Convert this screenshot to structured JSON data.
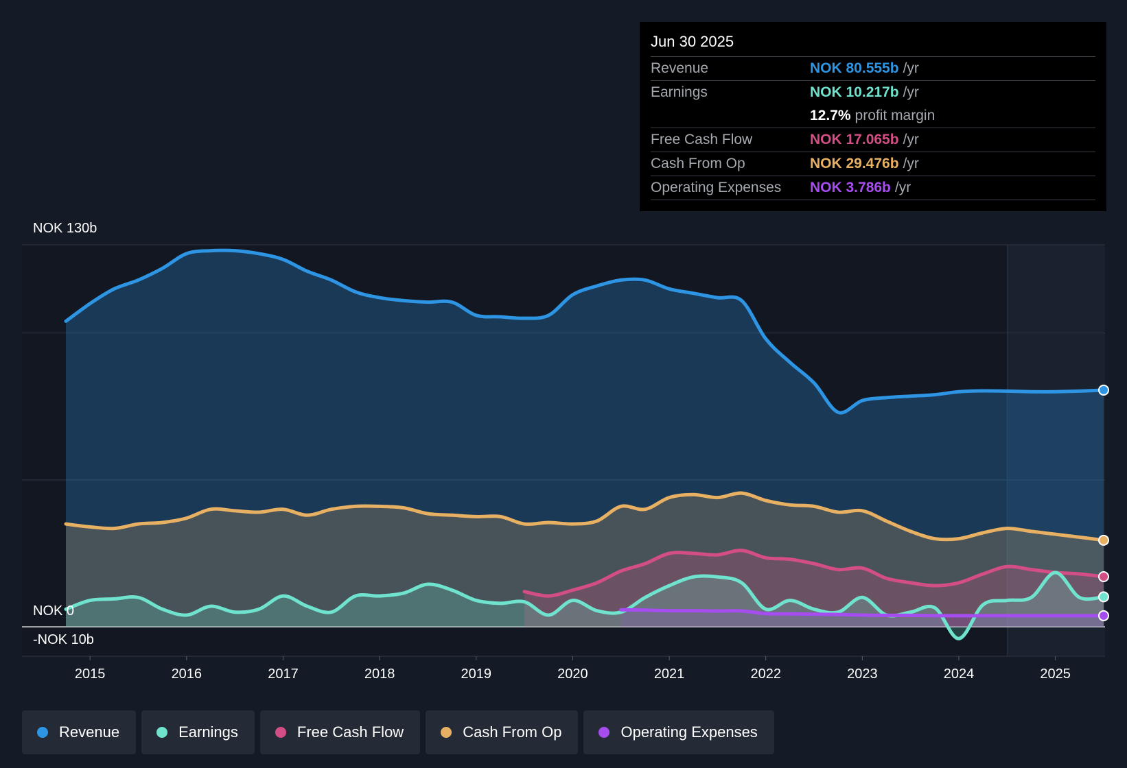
{
  "tooltip": {
    "date": "Jun 30 2025",
    "rows": [
      {
        "label": "Revenue",
        "value": "NOK 80.555b",
        "unit": "/yr",
        "color": "#2d95e3"
      },
      {
        "label": "Earnings",
        "value": "NOK 10.217b",
        "unit": "/yr",
        "color": "#6fe3ce"
      },
      {
        "label": "",
        "value": "12.7%",
        "unit": "profit margin",
        "color": "#ffffff"
      },
      {
        "label": "Free Cash Flow",
        "value": "NOK 17.065b",
        "unit": "/yr",
        "color": "#d24e84"
      },
      {
        "label": "Cash From Op",
        "value": "NOK 29.476b",
        "unit": "/yr",
        "color": "#e8b062"
      },
      {
        "label": "Operating Expenses",
        "value": "NOK 3.786b",
        "unit": "/yr",
        "color": "#a64df0"
      }
    ]
  },
  "legend": [
    {
      "label": "Revenue",
      "color": "#2d95e3"
    },
    {
      "label": "Earnings",
      "color": "#6fe3ce"
    },
    {
      "label": "Free Cash Flow",
      "color": "#d24e84"
    },
    {
      "label": "Cash From Op",
      "color": "#e8b062"
    },
    {
      "label": "Operating Expenses",
      "color": "#a64df0"
    }
  ],
  "chart_data": {
    "type": "area",
    "title": "",
    "xlabel": "",
    "ylabel": "",
    "ylim": [
      -10,
      130
    ],
    "xlim": [
      2014.75,
      2025.5
    ],
    "y_top_label": "NOK 130b",
    "y_zero_label": "NOK 0",
    "y_bottom_label": "-NOK 10b",
    "x_ticks": [
      "2015",
      "2016",
      "2017",
      "2018",
      "2019",
      "2020",
      "2021",
      "2022",
      "2023",
      "2024",
      "2025"
    ],
    "x_tick_values": [
      2015,
      2016,
      2017,
      2018,
      2019,
      2020,
      2021,
      2022,
      2023,
      2024,
      2025
    ],
    "forecast_start": 2024.5,
    "series": [
      {
        "name": "Revenue",
        "color": "#2d95e3",
        "points": [
          [
            2014.75,
            104
          ],
          [
            2015.0,
            110
          ],
          [
            2015.25,
            115
          ],
          [
            2015.5,
            118
          ],
          [
            2015.75,
            122
          ],
          [
            2016.0,
            127
          ],
          [
            2016.25,
            128
          ],
          [
            2016.5,
            128
          ],
          [
            2016.75,
            127
          ],
          [
            2017.0,
            125
          ],
          [
            2017.25,
            121
          ],
          [
            2017.5,
            118
          ],
          [
            2017.75,
            114
          ],
          [
            2018.0,
            112
          ],
          [
            2018.25,
            111
          ],
          [
            2018.5,
            110.5
          ],
          [
            2018.75,
            110.5
          ],
          [
            2019.0,
            106
          ],
          [
            2019.25,
            105.5
          ],
          [
            2019.5,
            105
          ],
          [
            2019.75,
            106
          ],
          [
            2020.0,
            113
          ],
          [
            2020.25,
            116
          ],
          [
            2020.5,
            118
          ],
          [
            2020.75,
            118
          ],
          [
            2021.0,
            115
          ],
          [
            2021.25,
            113.5
          ],
          [
            2021.5,
            112
          ],
          [
            2021.75,
            111
          ],
          [
            2022.0,
            98
          ],
          [
            2022.25,
            90
          ],
          [
            2022.5,
            83
          ],
          [
            2022.75,
            73
          ],
          [
            2023.0,
            77
          ],
          [
            2023.25,
            78
          ],
          [
            2023.5,
            78.5
          ],
          [
            2023.75,
            79
          ],
          [
            2024.0,
            80
          ],
          [
            2024.25,
            80.3
          ],
          [
            2024.5,
            80.2
          ],
          [
            2024.75,
            80
          ],
          [
            2025.0,
            80
          ],
          [
            2025.25,
            80.2
          ],
          [
            2025.5,
            80.555
          ]
        ]
      },
      {
        "name": "Cash From Op",
        "color": "#e8b062",
        "points": [
          [
            2014.75,
            35
          ],
          [
            2015.0,
            34
          ],
          [
            2015.25,
            33.5
          ],
          [
            2015.5,
            35
          ],
          [
            2015.75,
            35.5
          ],
          [
            2016.0,
            37
          ],
          [
            2016.25,
            40
          ],
          [
            2016.5,
            39.5
          ],
          [
            2016.75,
            39
          ],
          [
            2017.0,
            40
          ],
          [
            2017.25,
            38
          ],
          [
            2017.5,
            40
          ],
          [
            2017.75,
            41
          ],
          [
            2018.0,
            41
          ],
          [
            2018.25,
            40.5
          ],
          [
            2018.5,
            38.5
          ],
          [
            2018.75,
            38
          ],
          [
            2019.0,
            37.5
          ],
          [
            2019.25,
            37.5
          ],
          [
            2019.5,
            35
          ],
          [
            2019.75,
            35.5
          ],
          [
            2020.0,
            35
          ],
          [
            2020.25,
            36
          ],
          [
            2020.5,
            41
          ],
          [
            2020.75,
            40
          ],
          [
            2021.0,
            44
          ],
          [
            2021.25,
            45
          ],
          [
            2021.5,
            44
          ],
          [
            2021.75,
            45.5
          ],
          [
            2022.0,
            43
          ],
          [
            2022.25,
            41.5
          ],
          [
            2022.5,
            41
          ],
          [
            2022.75,
            39
          ],
          [
            2023.0,
            39.5
          ],
          [
            2023.25,
            36
          ],
          [
            2023.5,
            32.5
          ],
          [
            2023.75,
            30
          ],
          [
            2024.0,
            30
          ],
          [
            2024.25,
            32
          ],
          [
            2024.5,
            33.5
          ],
          [
            2024.75,
            32.5
          ],
          [
            2025.0,
            31.5
          ],
          [
            2025.25,
            30.5
          ],
          [
            2025.5,
            29.476
          ]
        ]
      },
      {
        "name": "Free Cash Flow",
        "color": "#d24e84",
        "points": [
          [
            2019.5,
            12
          ],
          [
            2019.75,
            10.5
          ],
          [
            2020.0,
            12.5
          ],
          [
            2020.25,
            15
          ],
          [
            2020.5,
            19
          ],
          [
            2020.75,
            21.5
          ],
          [
            2021.0,
            25
          ],
          [
            2021.25,
            25
          ],
          [
            2021.5,
            24.5
          ],
          [
            2021.75,
            26
          ],
          [
            2022.0,
            23.5
          ],
          [
            2022.25,
            23
          ],
          [
            2022.5,
            21.5
          ],
          [
            2022.75,
            19.5
          ],
          [
            2023.0,
            20
          ],
          [
            2023.25,
            16.5
          ],
          [
            2023.5,
            15
          ],
          [
            2023.75,
            14
          ],
          [
            2024.0,
            15
          ],
          [
            2024.25,
            18
          ],
          [
            2024.5,
            20.5
          ],
          [
            2024.75,
            19.5
          ],
          [
            2025.0,
            18.5
          ],
          [
            2025.25,
            18
          ],
          [
            2025.5,
            17.065
          ]
        ]
      },
      {
        "name": "Earnings",
        "color": "#6fe3ce",
        "points": [
          [
            2014.75,
            6
          ],
          [
            2015.0,
            9
          ],
          [
            2015.25,
            9.5
          ],
          [
            2015.5,
            10
          ],
          [
            2015.75,
            6
          ],
          [
            2016.0,
            4
          ],
          [
            2016.25,
            7
          ],
          [
            2016.5,
            5
          ],
          [
            2016.75,
            6
          ],
          [
            2017.0,
            10.5
          ],
          [
            2017.25,
            7
          ],
          [
            2017.5,
            5
          ],
          [
            2017.75,
            10.5
          ],
          [
            2018.0,
            10.5
          ],
          [
            2018.25,
            11.5
          ],
          [
            2018.5,
            14.5
          ],
          [
            2018.75,
            12.5
          ],
          [
            2019.0,
            9
          ],
          [
            2019.25,
            8
          ],
          [
            2019.5,
            8.5
          ],
          [
            2019.75,
            4
          ],
          [
            2020.0,
            9
          ],
          [
            2020.25,
            5.5
          ],
          [
            2020.5,
            5
          ],
          [
            2020.75,
            10
          ],
          [
            2021.0,
            14
          ],
          [
            2021.25,
            17
          ],
          [
            2021.5,
            17
          ],
          [
            2021.75,
            15
          ],
          [
            2022.0,
            6
          ],
          [
            2022.25,
            9
          ],
          [
            2022.5,
            6
          ],
          [
            2022.75,
            5
          ],
          [
            2023.0,
            10
          ],
          [
            2023.25,
            4
          ],
          [
            2023.5,
            5
          ],
          [
            2023.75,
            6.5
          ],
          [
            2024.0,
            -4
          ],
          [
            2024.25,
            7.5
          ],
          [
            2024.5,
            9
          ],
          [
            2024.75,
            10
          ],
          [
            2025.0,
            18.5
          ],
          [
            2025.25,
            10
          ],
          [
            2025.5,
            10.217
          ]
        ]
      },
      {
        "name": "Operating Expenses",
        "color": "#a64df0",
        "points": [
          [
            2020.5,
            5.8
          ],
          [
            2020.75,
            5.7
          ],
          [
            2021.0,
            5.5
          ],
          [
            2021.25,
            5.5
          ],
          [
            2021.5,
            5.4
          ],
          [
            2021.75,
            5.4
          ],
          [
            2022.0,
            4.5
          ],
          [
            2022.25,
            4.4
          ],
          [
            2022.5,
            4.3
          ],
          [
            2022.75,
            4.2
          ],
          [
            2023.0,
            4
          ],
          [
            2023.25,
            3.9
          ],
          [
            2023.5,
            3.9
          ],
          [
            2023.75,
            3.8
          ],
          [
            2024.0,
            3.8
          ],
          [
            2024.25,
            3.8
          ],
          [
            2024.5,
            3.8
          ],
          [
            2024.75,
            3.8
          ],
          [
            2025.0,
            3.8
          ],
          [
            2025.25,
            3.8
          ],
          [
            2025.5,
            3.786
          ]
        ]
      }
    ]
  }
}
